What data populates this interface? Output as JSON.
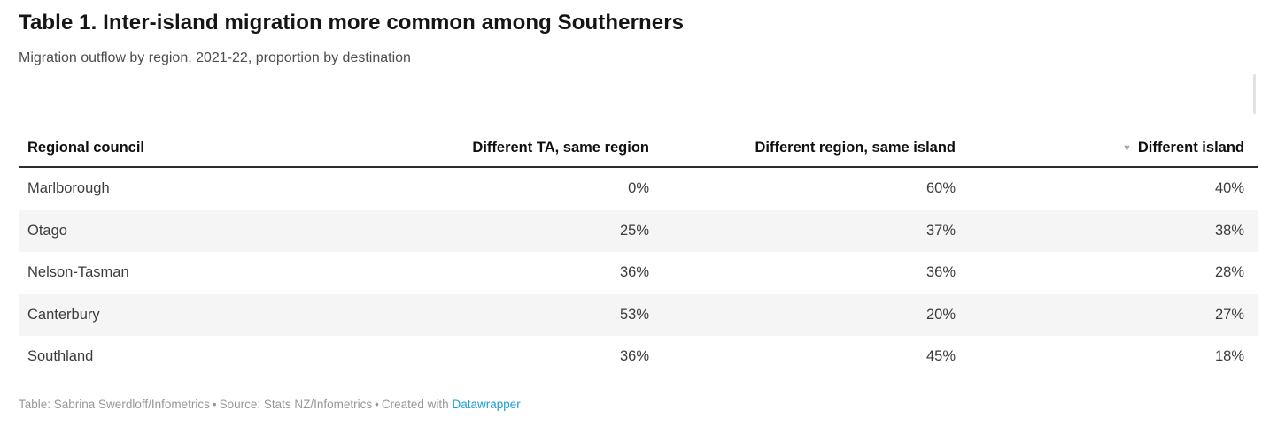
{
  "header": {
    "title": "Table 1. Inter-island migration more common among Southerners",
    "subtitle": "Migration outflow by region, 2021-22, proportion by destination"
  },
  "table": {
    "sort_icon": "▼",
    "sorted_column": "Different island",
    "sort_order": "descending",
    "columns": [
      {
        "label": "Regional council"
      },
      {
        "label": "Different TA, same region"
      },
      {
        "label": "Different region, same island"
      },
      {
        "label": "Different island"
      }
    ],
    "rows": [
      {
        "region": "Marlborough",
        "values": [
          "0%",
          "60%",
          "40%"
        ]
      },
      {
        "region": "Otago",
        "values": [
          "25%",
          "37%",
          "38%"
        ]
      },
      {
        "region": "Nelson-Tasman",
        "values": [
          "36%",
          "36%",
          "28%"
        ]
      },
      {
        "region": "Canterbury",
        "values": [
          "53%",
          "20%",
          "27%"
        ]
      },
      {
        "region": "Southland",
        "values": [
          "36%",
          "45%",
          "18%"
        ]
      }
    ]
  },
  "footer": {
    "credit": "Table: Sabrina Swerdloff/Infometrics",
    "separator": "•",
    "source": "Source: Stats NZ/Infometrics",
    "created_with": "Created with",
    "link_label": "Datawrapper"
  },
  "colors": {
    "title_text": "#151515",
    "subtitle_text": "#4d4d4d",
    "header_text": "#0f0f0f",
    "header_border": "#2d2d2d",
    "cell_text": "#3c3c3c",
    "row_stripe": "#f5f5f5",
    "footer_text": "#979797",
    "link_blue": "#1d9cd8",
    "sort_icon_gray": "#a9a9a9",
    "scrollbar_gray": "#e2e2e2"
  },
  "chart_data": {
    "type": "table",
    "title": "Table 1. Inter-island migration more common among Southerners",
    "subtitle": "Migration outflow by region, 2021-22, proportion by destination",
    "columns": [
      "Regional council",
      "Different TA, same region",
      "Different region, same island",
      "Different island"
    ],
    "rows": [
      [
        "Marlborough",
        "0%",
        "60%",
        "40%"
      ],
      [
        "Otago",
        "25%",
        "37%",
        "38%"
      ],
      [
        "Nelson-Tasman",
        "36%",
        "36%",
        "28%"
      ],
      [
        "Canterbury",
        "53%",
        "20%",
        "27%"
      ],
      [
        "Southland",
        "36%",
        "45%",
        "18%"
      ]
    ],
    "sorted_by": "Different island",
    "sort_order": "descending",
    "zebra_striping": true,
    "notes": "Table: Sabrina Swerdloff/Infometrics • Source: Stats NZ/Infometrics • Created with Datawrapper"
  }
}
